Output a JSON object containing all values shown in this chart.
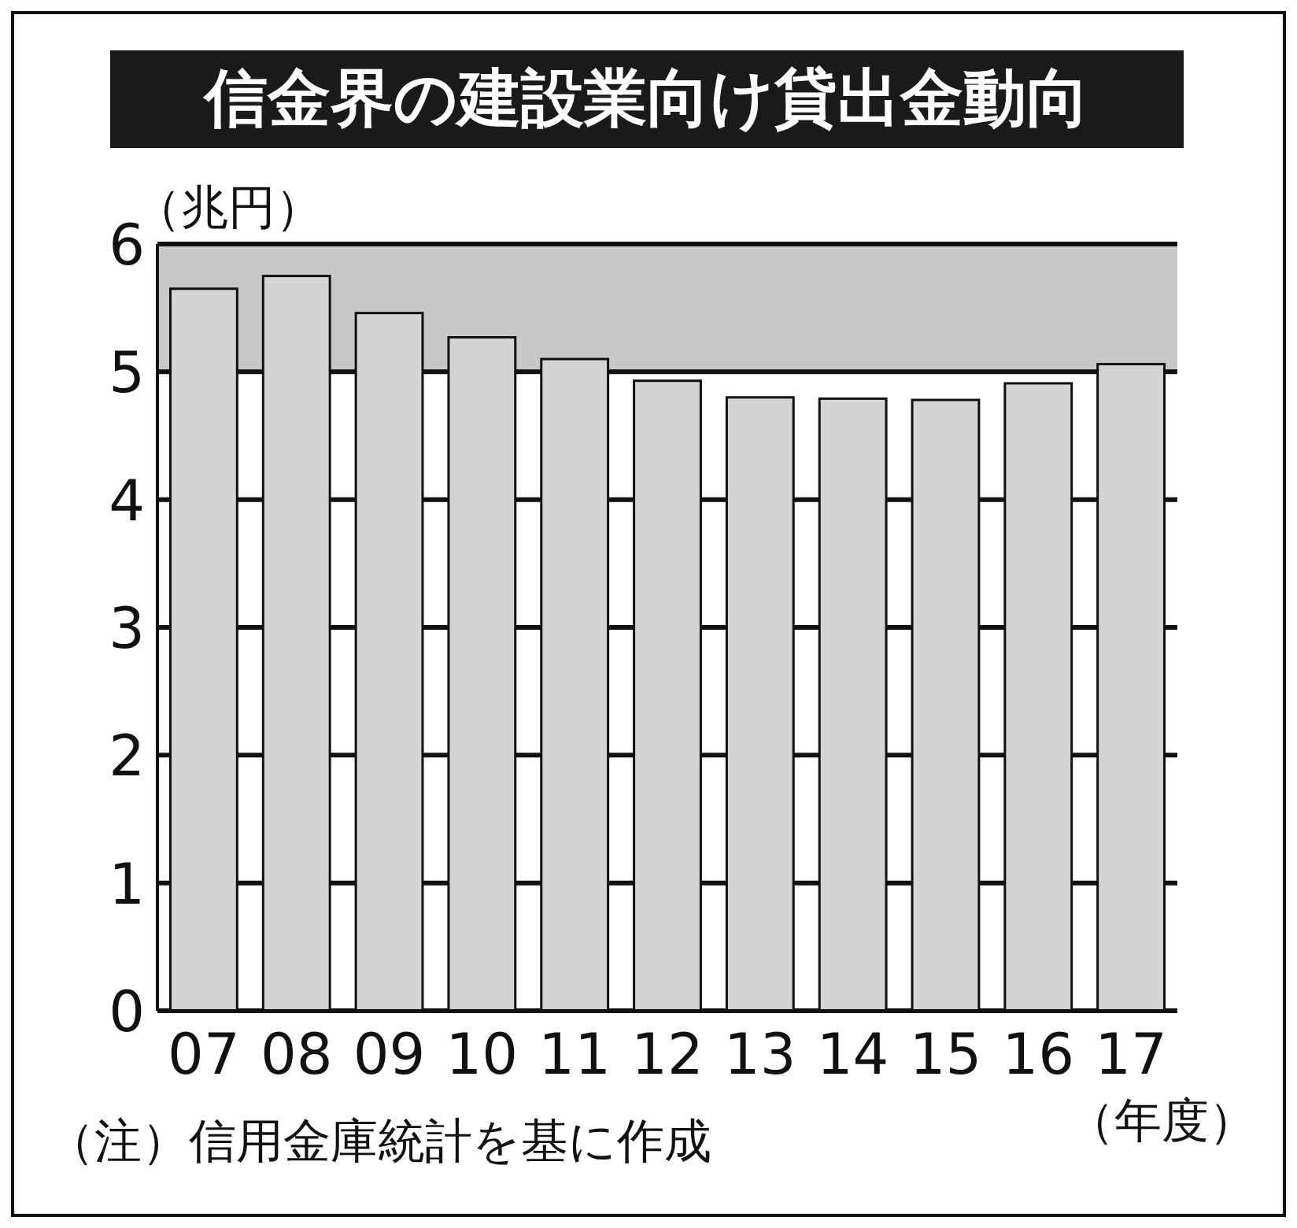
{
  "chart_data": {
    "type": "bar",
    "title": "信金界の建設業向け貸出金動向",
    "ylabel": "（兆円）",
    "xlabel": "（年度）",
    "categories": [
      "07",
      "08",
      "09",
      "10",
      "11",
      "12",
      "13",
      "14",
      "15",
      "16",
      "17"
    ],
    "values": [
      5.65,
      5.75,
      5.46,
      5.27,
      5.1,
      4.93,
      4.8,
      4.79,
      4.78,
      4.91,
      5.06
    ],
    "color": "#d4d4d4",
    "ylim": [
      0,
      6
    ],
    "yticks": [
      0,
      1,
      2,
      3,
      4,
      5,
      6
    ],
    "grid": "y",
    "annotations": [
      "（注）信用金庫統計を基に作成"
    ]
  }
}
